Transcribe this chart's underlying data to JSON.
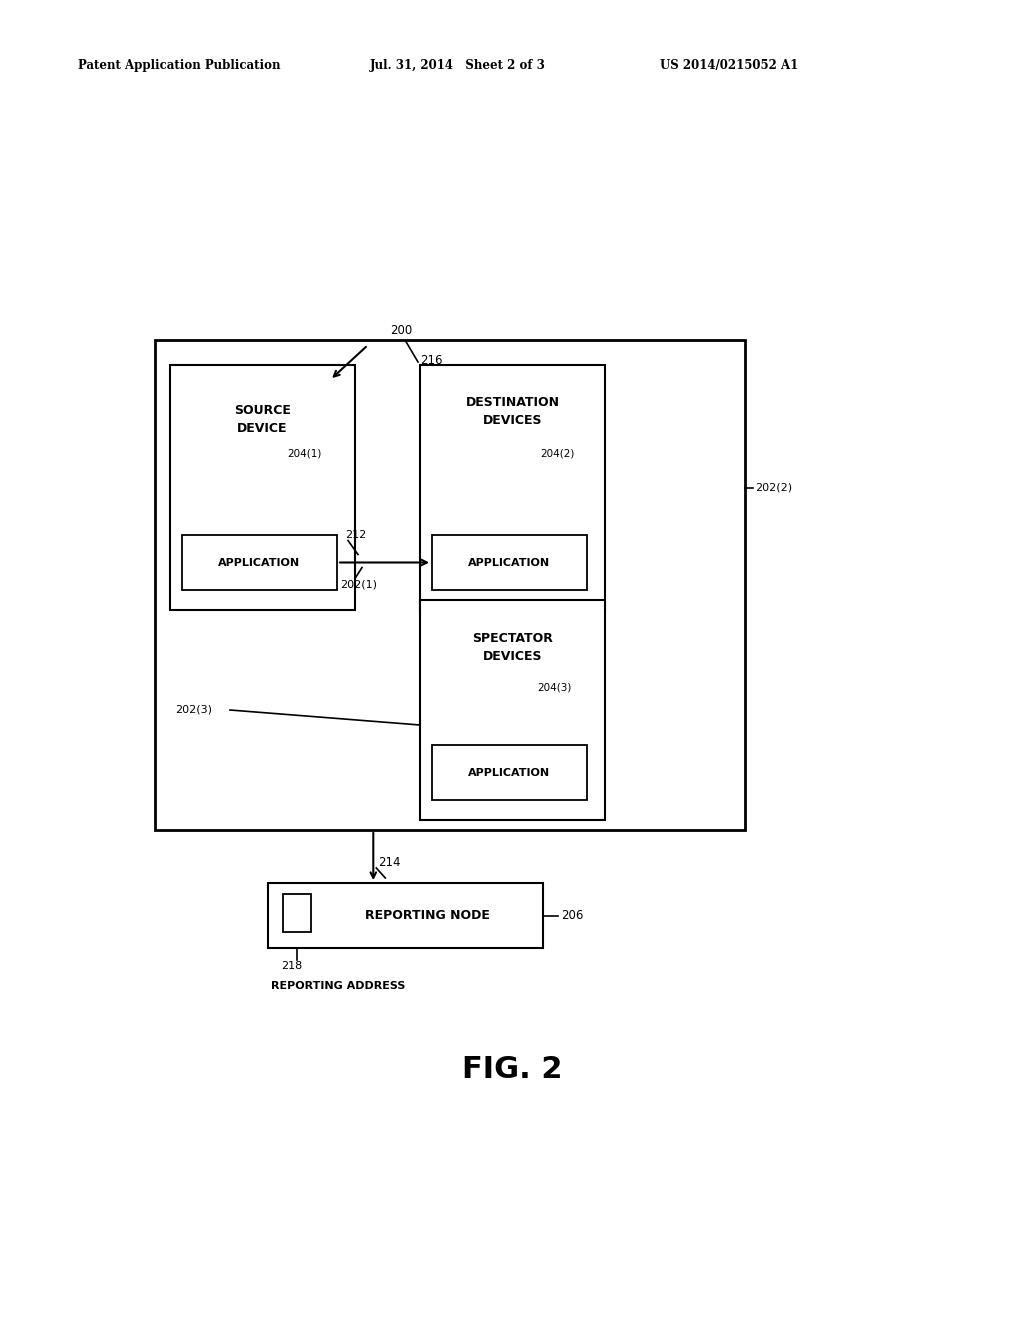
{
  "bg_color": "#ffffff",
  "header_left": "Patent Application Publication",
  "header_mid": "Jul. 31, 2014   Sheet 2 of 3",
  "header_right": "US 2014/0215052 A1",
  "fig_label": "FIG. 2",
  "label_200": "200",
  "label_216": "216",
  "label_212": "212",
  "label_202_1": "202(1)",
  "label_202_2": "202(2)",
  "label_202_3": "202(3)",
  "label_204_1": "204(1)",
  "label_204_2": "204(2)",
  "label_204_3": "204(3)",
  "label_206": "206",
  "label_214": "214",
  "label_218": "218",
  "label_reporting_address": "REPORTING ADDRESS"
}
